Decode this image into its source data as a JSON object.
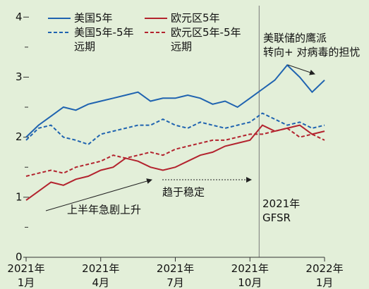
{
  "chart_data": {
    "type": "line",
    "x": [
      0,
      0.5,
      1,
      1.5,
      2,
      2.5,
      3,
      3.5,
      4,
      4.5,
      5,
      5.5,
      6,
      6.5,
      7,
      7.5,
      8,
      8.5,
      9,
      9.5,
      10,
      10.5,
      11,
      11.5,
      12
    ],
    "xlim": [
      0,
      12.3
    ],
    "xticks": [
      {
        "value": 0,
        "label": "2021年\n1月"
      },
      {
        "value": 3,
        "label": "2021年\n4月"
      },
      {
        "value": 6,
        "label": "2021年\n7月"
      },
      {
        "value": 9,
        "label": "2021年\n10月"
      },
      {
        "value": 12,
        "label": "2022年\n1月"
      }
    ],
    "ylim": [
      0,
      4.05
    ],
    "yticks": [
      0,
      1,
      2,
      3,
      4
    ],
    "minor_yticks": [
      0.5,
      1.5,
      2.5,
      3.5
    ],
    "event_x": 9.37,
    "series": [
      {
        "name": "美国5年",
        "color": "#1f63b0",
        "dash": false,
        "values": [
          2.0,
          2.2,
          2.35,
          2.5,
          2.45,
          2.55,
          2.6,
          2.65,
          2.7,
          2.75,
          2.6,
          2.65,
          2.65,
          2.7,
          2.65,
          2.55,
          2.6,
          2.5,
          2.65,
          2.8,
          2.95,
          3.2,
          3.0,
          2.75,
          2.95
        ]
      },
      {
        "name": "美国5年-5年远期",
        "color": "#1f63b0",
        "dash": true,
        "values": [
          1.95,
          2.15,
          2.2,
          2.0,
          1.95,
          1.88,
          2.05,
          2.1,
          2.15,
          2.2,
          2.2,
          2.3,
          2.2,
          2.15,
          2.25,
          2.2,
          2.15,
          2.2,
          2.25,
          2.4,
          2.3,
          2.2,
          2.25,
          2.15,
          2.2
        ]
      },
      {
        "name": "欧元区5年",
        "color": "#b3232e",
        "dash": false,
        "values": [
          0.95,
          1.1,
          1.25,
          1.2,
          1.3,
          1.35,
          1.45,
          1.5,
          1.65,
          1.6,
          1.5,
          1.45,
          1.5,
          1.6,
          1.7,
          1.75,
          1.85,
          1.9,
          1.95,
          2.2,
          2.1,
          2.15,
          2.2,
          2.05,
          2.1
        ]
      },
      {
        "name": "欧元区5年-5年远期",
        "color": "#b3232e",
        "dash": true,
        "values": [
          1.35,
          1.4,
          1.45,
          1.4,
          1.5,
          1.55,
          1.6,
          1.7,
          1.65,
          1.7,
          1.75,
          1.7,
          1.8,
          1.85,
          1.9,
          1.95,
          1.95,
          2.0,
          2.05,
          2.05,
          2.1,
          2.15,
          2.0,
          2.05,
          1.95
        ]
      }
    ],
    "annotations": [
      "上半年急剧上升",
      "趋于稳定",
      "2021年\nGFSR",
      "美联储的鹰派\n转向+ 对病毒的担忧"
    ]
  }
}
